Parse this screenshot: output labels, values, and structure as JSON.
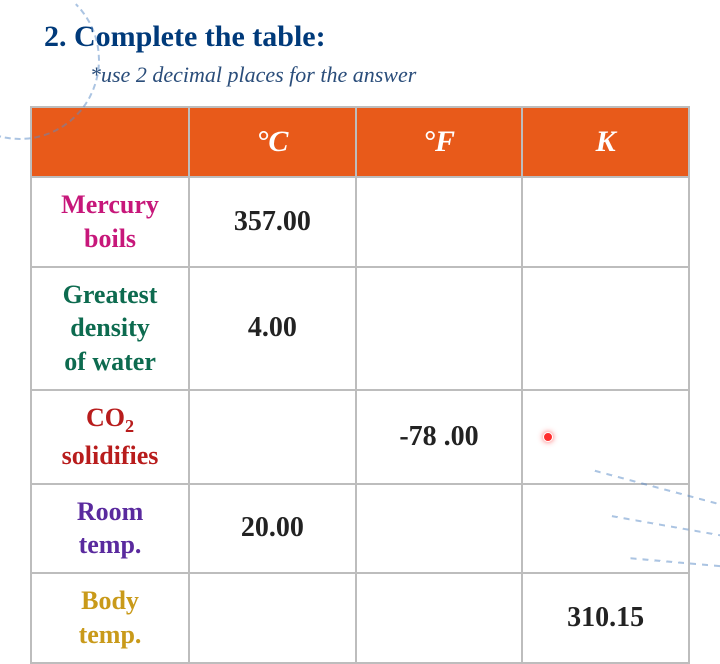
{
  "title": "2. Complete the table:",
  "subtitle": "*use 2 decimal places for the answer",
  "table": {
    "header_bg": "#e85a1a",
    "header_color": "#ffffff",
    "border_color": "#bdbdbd",
    "columns": [
      {
        "label": ""
      },
      {
        "label": "°C"
      },
      {
        "label": "°F"
      },
      {
        "label": "K"
      }
    ],
    "rows": [
      {
        "label_line1": "Mercury",
        "label_line2": "boils",
        "label_color": "#c7177a",
        "c": "357.00",
        "f": "",
        "k": ""
      },
      {
        "label_line1": "Greatest",
        "label_line2": "density",
        "label_line3": "of water",
        "label_color": "#0d6b4f",
        "c": "4.00",
        "f": "",
        "k": ""
      },
      {
        "label_part1": "CO",
        "label_sub": "2",
        "label_line2": "solidifies",
        "label_color": "#b81c1c",
        "c": "",
        "f": "-78 .00",
        "k": "",
        "k_has_dot": true
      },
      {
        "label_line1": "Room",
        "label_line2": "temp.",
        "label_color": "#5a2a9e",
        "c": "20.00",
        "f": "",
        "k": ""
      },
      {
        "label_line1": "Body",
        "label_line2": "temp.",
        "label_color": "#c99a1a",
        "c": "",
        "f": "",
        "k": "310.15"
      }
    ]
  },
  "styling": {
    "title_color": "#003a7a",
    "subtitle_color": "#2a4d7a",
    "cell_text_color": "#222222",
    "dot_color": "#ff2d2d",
    "deco_color": "#5a8bc7",
    "title_fontsize": 30,
    "subtitle_fontsize": 22,
    "header_fontsize": 30,
    "rowlabel_fontsize": 26,
    "cell_fontsize": 28
  }
}
